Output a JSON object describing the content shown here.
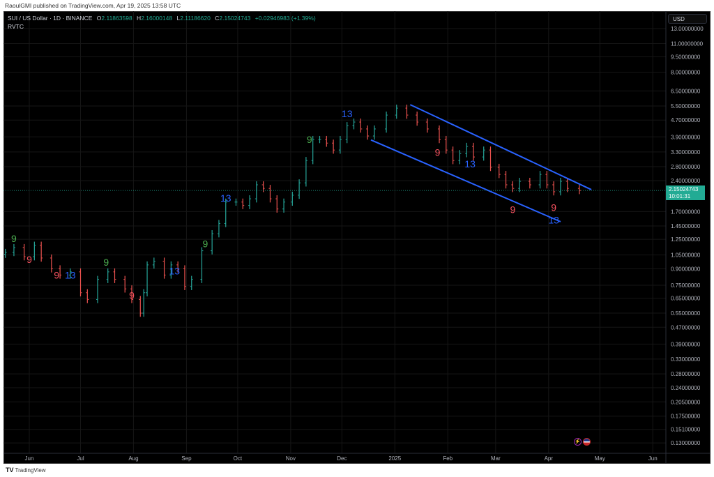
{
  "publisher_line": "RaoulGMI published on TradingView.com, Apr 19, 2025 13:58 UTC",
  "legend": {
    "symbol": "SUI / US Dollar · 1D · BINANCE",
    "open_label": "O",
    "open": "2.11863598",
    "high_label": "H",
    "high": "2.16000148",
    "low_label": "L",
    "low": "2.11186620",
    "close_label": "C",
    "close": "2.15024743",
    "change": "+0.02946983 (+1.39%)",
    "indicator": "RVTC"
  },
  "currency": "USD",
  "current_price": {
    "value": "2.15024743",
    "countdown": "10:01:31"
  },
  "events_icons": [
    "lightning-icon",
    "us-flag-icon"
  ],
  "footer_logo": "TradingView",
  "colors": {
    "up": "#26a69a",
    "down": "#ef5350",
    "trendline": "#2962ff",
    "label_green": "#4caf50",
    "label_red": "#f7525f",
    "label_blue": "#2962ff",
    "price_box": "#22ab94"
  },
  "chart_data": {
    "type": "bar",
    "title": "SUI / US Dollar · 1D · BINANCE",
    "y_scale": "log",
    "ylim": [
      0.12,
      14
    ],
    "xlim": [
      "2024-05-18",
      "2025-06-10"
    ],
    "grid": true,
    "y_ticks": [
      "13.00000000",
      "11.00000000",
      "9.50000000",
      "8.00000000",
      "6.50000000",
      "5.50000000",
      "4.70000000",
      "3.90000000",
      "3.30000000",
      "2.80000000",
      "2.40000000",
      "1.70000000",
      "1.45000000",
      "1.25000000",
      "1.05000000",
      "0.90000000",
      "0.75000000",
      "0.65000000",
      "0.55000000",
      "0.47000000",
      "0.39000000",
      "0.33000000",
      "0.28000000",
      "0.24000000",
      "0.20500000",
      "0.17500000",
      "0.15100000",
      "0.13000000"
    ],
    "x_ticks": [
      {
        "label": "Jun",
        "date": "2024-06-01"
      },
      {
        "label": "Jul",
        "date": "2024-07-01"
      },
      {
        "label": "Aug",
        "date": "2024-08-01"
      },
      {
        "label": "Sep",
        "date": "2024-09-01"
      },
      {
        "label": "Oct",
        "date": "2024-10-01"
      },
      {
        "label": "Nov",
        "date": "2024-11-01"
      },
      {
        "label": "Dec",
        "date": "2024-12-01"
      },
      {
        "label": "2025",
        "date": "2025-01-01"
      },
      {
        "label": "Feb",
        "date": "2025-02-01"
      },
      {
        "label": "Mar",
        "date": "2025-03-01"
      },
      {
        "label": "Apr",
        "date": "2025-04-01"
      },
      {
        "label": "May",
        "date": "2025-05-01"
      },
      {
        "label": "Jun",
        "date": "2025-06-01"
      }
    ],
    "series": [
      {
        "dates": [
          "2024-05-18",
          "2024-05-23",
          "2024-05-29",
          "2024-06-04",
          "2024-06-08",
          "2024-06-14",
          "2024-06-19",
          "2024-06-25",
          "2024-07-01",
          "2024-07-05",
          "2024-07-11",
          "2024-07-17",
          "2024-07-21",
          "2024-07-27",
          "2024-07-31",
          "2024-08-05",
          "2024-08-07",
          "2024-08-09",
          "2024-08-13",
          "2024-08-19",
          "2024-08-23",
          "2024-08-27",
          "2024-08-31",
          "2024-09-04",
          "2024-09-10",
          "2024-09-16",
          "2024-09-20",
          "2024-09-24",
          "2024-09-30",
          "2024-10-04",
          "2024-10-08",
          "2024-10-12",
          "2024-10-16",
          "2024-10-20",
          "2024-10-24",
          "2024-10-28",
          "2024-11-02",
          "2024-11-06",
          "2024-11-10",
          "2024-11-14",
          "2024-11-18",
          "2024-11-22",
          "2024-11-26",
          "2024-11-30",
          "2024-12-04",
          "2024-12-08",
          "2024-12-12",
          "2024-12-16",
          "2024-12-20",
          "2024-12-27",
          "2025-01-02",
          "2025-01-08",
          "2025-01-14",
          "2025-01-20",
          "2025-01-27",
          "2025-01-31",
          "2025-02-04",
          "2025-02-08",
          "2025-02-12",
          "2025-02-16",
          "2025-02-22",
          "2025-02-26",
          "2025-03-03",
          "2025-03-07",
          "2025-03-11",
          "2025-03-15",
          "2025-03-21",
          "2025-03-27",
          "2025-03-31",
          "2025-04-04",
          "2025-04-08",
          "2025-04-12",
          "2025-04-19"
        ],
        "close": [
          1.08,
          1.14,
          1.03,
          1.17,
          1.015,
          0.9,
          0.84,
          0.87,
          0.69,
          0.64,
          0.8,
          0.87,
          0.8,
          0.72,
          0.64,
          0.55,
          0.69,
          0.94,
          0.98,
          0.84,
          0.94,
          0.9,
          0.74,
          0.8,
          1.1,
          1.33,
          1.49,
          1.89,
          1.89,
          1.82,
          1.96,
          2.29,
          2.2,
          1.96,
          1.75,
          1.89,
          2.04,
          2.34,
          3.0,
          3.79,
          3.79,
          3.64,
          3.37,
          3.79,
          4.42,
          4.6,
          4.26,
          3.94,
          4.26,
          4.97,
          5.37,
          4.97,
          4.6,
          4.26,
          3.79,
          3.37,
          3.0,
          3.24,
          3.51,
          3.12,
          3.37,
          2.78,
          2.57,
          2.29,
          2.2,
          2.38,
          2.29,
          2.57,
          2.29,
          2.12,
          2.38,
          2.2,
          2.15
        ]
      }
    ],
    "annotations": [
      {
        "text": "9",
        "color": "green",
        "date": "2024-05-23",
        "price": 1.26
      },
      {
        "text": "9",
        "color": "red",
        "date": "2024-06-01",
        "price": 1.0
      },
      {
        "text": "9",
        "color": "red",
        "date": "2024-06-17",
        "price": 0.84
      },
      {
        "text": "13",
        "color": "blue",
        "date": "2024-06-25",
        "price": 0.84
      },
      {
        "text": "9",
        "color": "green",
        "date": "2024-07-16",
        "price": 0.97
      },
      {
        "text": "9",
        "color": "red",
        "date": "2024-07-31",
        "price": 0.67
      },
      {
        "text": "13",
        "color": "blue",
        "date": "2024-08-25",
        "price": 0.88
      },
      {
        "text": "9",
        "color": "green",
        "date": "2024-09-12",
        "price": 1.19
      },
      {
        "text": "13",
        "color": "blue",
        "date": "2024-09-24",
        "price": 1.98
      },
      {
        "text": "9",
        "color": "green",
        "date": "2024-11-12",
        "price": 3.79
      },
      {
        "text": "13",
        "color": "blue",
        "date": "2024-12-04",
        "price": 5.05
      },
      {
        "text": "9",
        "color": "red",
        "date": "2025-01-26",
        "price": 3.29
      },
      {
        "text": "13",
        "color": "blue",
        "date": "2025-02-14",
        "price": 2.89
      },
      {
        "text": "9",
        "color": "red",
        "date": "2025-03-11",
        "price": 1.74
      },
      {
        "text": "9",
        "color": "red",
        "date": "2025-04-04",
        "price": 1.78
      },
      {
        "text": "13",
        "color": "blue",
        "date": "2025-04-04",
        "price": 1.55
      }
    ],
    "trendlines": [
      {
        "name": "upper",
        "start": {
          "date": "2025-01-10",
          "price": 5.58
        },
        "end": {
          "date": "2025-04-26",
          "price": 2.17
        }
      },
      {
        "name": "lower",
        "start": {
          "date": "2024-12-18",
          "price": 3.77
        },
        "end": {
          "date": "2025-04-08",
          "price": 1.52
        }
      }
    ]
  }
}
